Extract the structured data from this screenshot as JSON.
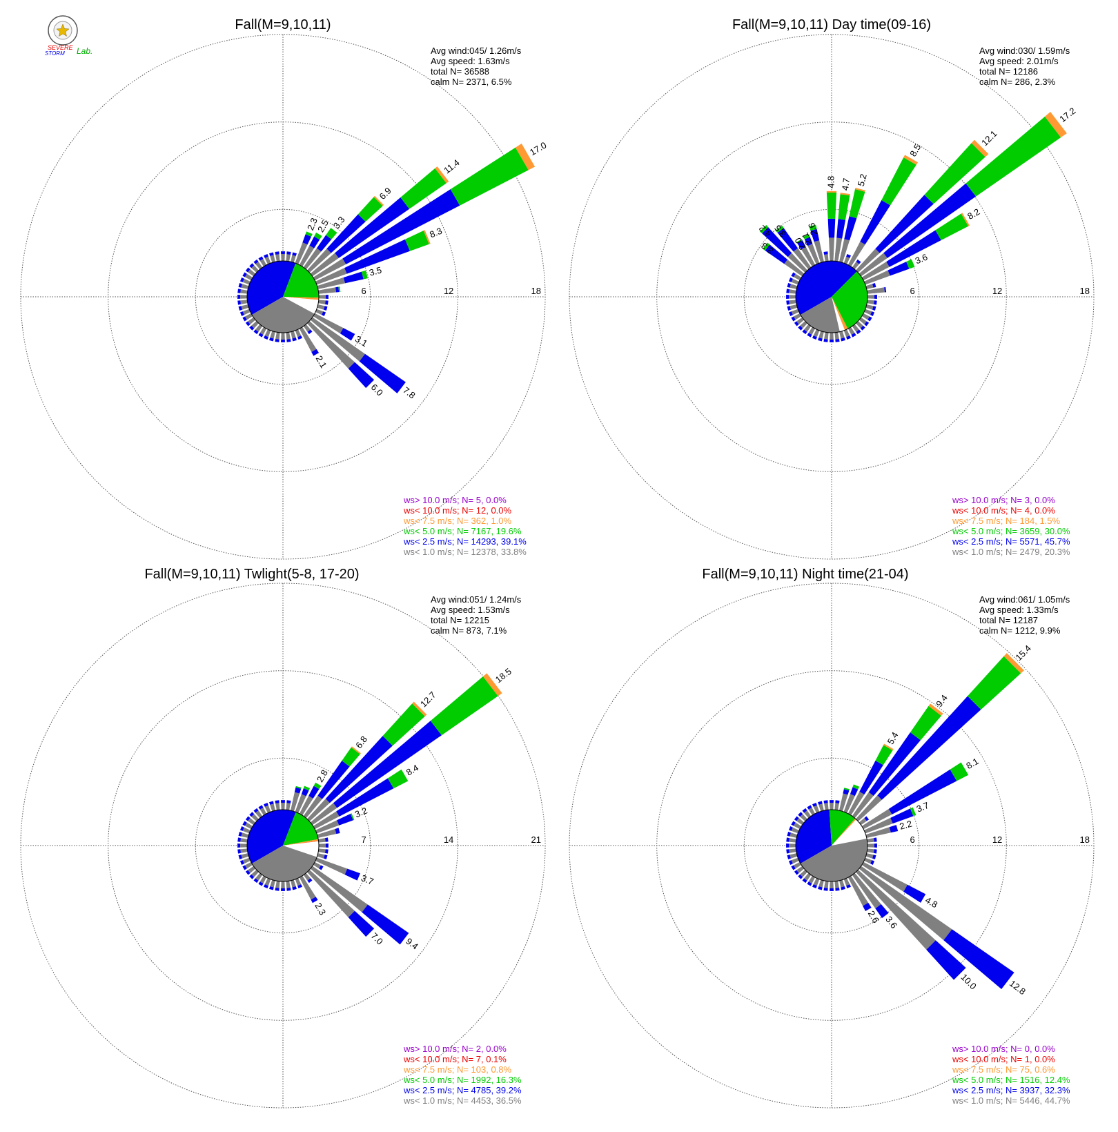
{
  "logo": {
    "line1": "SEVERE",
    "line2": "STORM",
    "line3": "Lab."
  },
  "colors": {
    "calm": "#ffffff",
    "lt1": "#808080",
    "lt2_5": "#0000ee",
    "lt5": "#00cc00",
    "lt7_5": "#ff9933",
    "lt10": "#ee0000",
    "gt10": "#9900cc"
  },
  "chart_data": [
    {
      "type": "wind-rose",
      "title": "Fall(M=9,10,11)",
      "stats": [
        "Avg wind:045/ 1.26m/s",
        "Avg speed: 1.63m/s",
        "total N=       36588",
        "calm N=   2371,   6.5%"
      ],
      "rings": [
        6,
        12,
        18
      ],
      "petals": [
        {
          "dir": 22.5,
          "total": 2.3,
          "lt1": 1.5,
          "lt2_5": 0.6,
          "lt5": 0.2
        },
        {
          "dir": 30,
          "total": 2.5,
          "lt1": 1.5,
          "lt2_5": 0.7,
          "lt5": 0.3
        },
        {
          "dir": 37.5,
          "total": 3.3,
          "lt1": 1.6,
          "lt2_5": 1.1,
          "lt5": 0.6
        },
        {
          "dir": 45,
          "total": 6.9,
          "lt1": 2.0,
          "lt2_5": 3.2,
          "lt5": 1.6,
          "lt7_5": 0.1
        },
        {
          "dir": 52.5,
          "total": 11.4,
          "lt1": 2.2,
          "lt2_5": 5.9,
          "lt5": 3.1,
          "lt7_5": 0.2
        },
        {
          "dir": 60,
          "total": 17.0,
          "lt1": 2.4,
          "lt2_5": 8.8,
          "lt5": 5.3,
          "lt7_5": 0.5
        },
        {
          "dir": 67.5,
          "total": 8.3,
          "lt1": 2.2,
          "lt2_5": 4.6,
          "lt5": 1.4,
          "lt7_5": 0.1
        },
        {
          "dir": 75,
          "total": 3.5,
          "lt1": 1.9,
          "lt2_5": 1.3,
          "lt5": 0.3
        },
        {
          "dir": 82.5,
          "total": 1.5,
          "lt1": 1.2,
          "lt2_5": 0.2,
          "lt5": 0.1
        },
        {
          "dir": 120,
          "total": 3.1,
          "lt1": 2.2,
          "lt2_5": 0.9
        },
        {
          "dir": 127.5,
          "total": 7.8,
          "lt1": 4.4,
          "lt2_5": 3.4
        },
        {
          "dir": 135,
          "total": 6.0,
          "lt1": 4.2,
          "lt2_5": 1.8
        },
        {
          "dir": 150,
          "total": 2.1,
          "lt1": 1.8,
          "lt2_5": 0.3
        }
      ],
      "labels": [
        {
          "dir": 22.5,
          "text": "2.3"
        },
        {
          "dir": 30,
          "text": "2.5"
        },
        {
          "dir": 37.5,
          "text": "3.3"
        },
        {
          "dir": 45,
          "text": "6.9"
        },
        {
          "dir": 52.5,
          "text": "11.4"
        },
        {
          "dir": 60,
          "text": "17.0"
        },
        {
          "dir": 67.5,
          "text": "8.3"
        },
        {
          "dir": 75,
          "text": "3.5"
        },
        {
          "dir": 120,
          "text": "3.1"
        },
        {
          "dir": 127.5,
          "text": "7.8"
        },
        {
          "dir": 135,
          "text": "6.0"
        },
        {
          "dir": 150,
          "text": "2.1"
        }
      ],
      "pie": {
        "lt2_5": 39.1,
        "lt5": 19.6,
        "lt7_5": 1.0,
        "lt10": 0.0,
        "gt10": 0.0,
        "calm": 6.5,
        "lt1": 33.8
      },
      "legend": [
        {
          "key": "gt10",
          "text": "ws> 10.0 m/s; N=     5,  0.0%"
        },
        {
          "key": "lt10",
          "text": "ws< 10.0 m/s; N=    12,  0.0%"
        },
        {
          "key": "lt7_5",
          "text": "ws<  7.5 m/s; N=   362,  1.0%"
        },
        {
          "key": "lt5",
          "text": "ws<  5.0 m/s; N=  7167, 19.6%"
        },
        {
          "key": "lt2_5",
          "text": "ws<  2.5 m/s; N= 14293, 39.1%"
        },
        {
          "key": "lt1",
          "text": "ws<  1.0 m/s; N= 12378, 33.8%"
        }
      ]
    },
    {
      "type": "wind-rose",
      "title": "Fall(M=9,10,11) Day time(09-16)",
      "stats": [
        "Avg wind:030/ 1.59m/s",
        "Avg speed: 2.01m/s",
        "total N=       12186",
        "calm N=    286,   2.3%"
      ],
      "rings": [
        6,
        12,
        18
      ],
      "petals": [
        {
          "dir": -52.5,
          "total": 3.3,
          "lt1": 1.5,
          "lt2_5": 1.6,
          "lt5": 0.2
        },
        {
          "dir": -45,
          "total": 4.2,
          "lt1": 1.6,
          "lt2_5": 2.4,
          "lt5": 0.2
        },
        {
          "dir": -37.5,
          "total": 3.5,
          "lt1": 1.6,
          "lt2_5": 1.7,
          "lt5": 0.2
        },
        {
          "dir": -30,
          "total": 2.0,
          "lt1": 1.4,
          "lt2_5": 0.5,
          "lt5": 0.1
        },
        {
          "dir": -22.5,
          "total": 2.1,
          "lt1": 1.4,
          "lt2_5": 0.5,
          "lt5": 0.2
        },
        {
          "dir": -15,
          "total": 2.6,
          "lt1": 1.5,
          "lt2_5": 0.8,
          "lt5": 0.3
        },
        {
          "dir": 0,
          "total": 4.8,
          "lt1": 1.6,
          "lt2_5": 1.3,
          "lt5": 1.8,
          "lt7_5": 0.1
        },
        {
          "dir": 7.5,
          "total": 4.7,
          "lt1": 1.6,
          "lt2_5": 1.3,
          "lt5": 1.7,
          "lt7_5": 0.1
        },
        {
          "dir": 15,
          "total": 5.2,
          "lt1": 1.6,
          "lt2_5": 1.6,
          "lt5": 1.9,
          "lt7_5": 0.1
        },
        {
          "dir": 30,
          "total": 8.5,
          "lt1": 1.8,
          "lt2_5": 3.2,
          "lt5": 3.3,
          "lt7_5": 0.2
        },
        {
          "dir": 45,
          "total": 12.1,
          "lt1": 2.0,
          "lt2_5": 5.0,
          "lt5": 4.8,
          "lt7_5": 0.3
        },
        {
          "dir": 52.5,
          "total": 17.2,
          "lt1": 2.2,
          "lt2_5": 7.4,
          "lt5": 7.1,
          "lt7_5": 0.5
        },
        {
          "dir": 60,
          "total": 8.2,
          "lt1": 2.0,
          "lt2_5": 4.0,
          "lt5": 2.1,
          "lt7_5": 0.1
        },
        {
          "dir": 67.5,
          "total": 3.6,
          "lt1": 1.8,
          "lt2_5": 1.4,
          "lt5": 0.4
        },
        {
          "dir": 82.5,
          "total": 1.3,
          "lt1": 1.2,
          "lt2_5": 0.1
        }
      ],
      "labels": [
        {
          "dir": -52.5,
          "text": "3.3"
        },
        {
          "dir": -45,
          "text": "4.2"
        },
        {
          "dir": -37.5,
          "text": "3.5"
        },
        {
          "dir": -30,
          "text": "2.0"
        },
        {
          "dir": -22.5,
          "text": "2.1"
        },
        {
          "dir": -15,
          "text": "2.6"
        },
        {
          "dir": 0,
          "text": "4.8"
        },
        {
          "dir": 7.5,
          "text": "4.7"
        },
        {
          "dir": 15,
          "text": "5.2"
        },
        {
          "dir": 30,
          "text": "8.5"
        },
        {
          "dir": 45,
          "text": "12.1"
        },
        {
          "dir": 52.5,
          "text": "17.2"
        },
        {
          "dir": 60,
          "text": "8.2"
        },
        {
          "dir": 67.5,
          "text": "3.6"
        }
      ],
      "pie": {
        "lt2_5": 45.7,
        "lt5": 30.0,
        "lt7_5": 1.5,
        "lt10": 0.0,
        "gt10": 0.0,
        "calm": 2.3,
        "lt1": 20.3
      },
      "legend": [
        {
          "key": "gt10",
          "text": "ws> 10.0 m/s; N=     3,  0.0%"
        },
        {
          "key": "lt10",
          "text": "ws< 10.0 m/s; N=     4,  0.0%"
        },
        {
          "key": "lt7_5",
          "text": "ws<  7.5 m/s; N=   184,  1.5%"
        },
        {
          "key": "lt5",
          "text": "ws<  5.0 m/s; N=  3659, 30.0%"
        },
        {
          "key": "lt2_5",
          "text": "ws<  2.5 m/s; N=  5571, 45.7%"
        },
        {
          "key": "lt1",
          "text": "ws<  1.0 m/s; N=  2479, 20.3%"
        }
      ]
    },
    {
      "type": "wind-rose",
      "title": "Fall(M=9,10,11) Twlight(5-8, 17-20)",
      "stats": [
        "Avg wind:051/ 1.24m/s",
        "Avg speed: 1.53m/s",
        "total N=       12215",
        "calm N=    873,   7.1%"
      ],
      "rings": [
        7,
        14,
        21
      ],
      "petals": [
        {
          "dir": 15,
          "total": 2.0,
          "lt1": 1.5,
          "lt2_5": 0.4,
          "lt5": 0.1
        },
        {
          "dir": 22.5,
          "total": 2.2,
          "lt1": 1.5,
          "lt2_5": 0.5,
          "lt5": 0.2
        },
        {
          "dir": 30,
          "total": 2.8,
          "lt1": 1.6,
          "lt2_5": 0.9,
          "lt5": 0.3
        },
        {
          "dir": 37.5,
          "total": 6.8,
          "lt1": 2.0,
          "lt2_5": 3.4,
          "lt5": 1.3,
          "lt7_5": 0.1
        },
        {
          "dir": 45,
          "total": 12.7,
          "lt1": 2.2,
          "lt2_5": 6.8,
          "lt5": 3.5,
          "lt7_5": 0.2
        },
        {
          "dir": 52.5,
          "total": 18.5,
          "lt1": 2.4,
          "lt2_5": 10.2,
          "lt5": 5.5,
          "lt7_5": 0.4
        },
        {
          "dir": 60,
          "total": 8.4,
          "lt1": 2.2,
          "lt2_5": 4.9,
          "lt5": 1.3
        },
        {
          "dir": 67.5,
          "total": 3.2,
          "lt1": 1.9,
          "lt2_5": 1.2,
          "lt5": 0.1
        },
        {
          "dir": 75,
          "total": 1.8,
          "lt1": 1.5,
          "lt2_5": 0.3
        },
        {
          "dir": 112.5,
          "total": 3.7,
          "lt1": 2.6,
          "lt2_5": 1.1
        },
        {
          "dir": 127.5,
          "total": 9.4,
          "lt1": 5.4,
          "lt2_5": 4.0
        },
        {
          "dir": 135,
          "total": 7.0,
          "lt1": 4.9,
          "lt2_5": 2.1
        },
        {
          "dir": 150,
          "total": 2.3,
          "lt1": 2.0,
          "lt2_5": 0.3
        }
      ],
      "labels": [
        {
          "dir": 30,
          "text": "2.8"
        },
        {
          "dir": 37.5,
          "text": "6.8"
        },
        {
          "dir": 45,
          "text": "12.7"
        },
        {
          "dir": 52.5,
          "text": "18.5"
        },
        {
          "dir": 60,
          "text": "8.4"
        },
        {
          "dir": 67.5,
          "text": "3.2"
        },
        {
          "dir": 112.5,
          "text": "3.7"
        },
        {
          "dir": 127.5,
          "text": "9.4"
        },
        {
          "dir": 135,
          "text": "7.0"
        },
        {
          "dir": 150,
          "text": "2.3"
        }
      ],
      "pie": {
        "lt2_5": 39.2,
        "lt5": 16.3,
        "lt7_5": 0.8,
        "lt10": 0.1,
        "gt10": 0.0,
        "calm": 7.1,
        "lt1": 36.5
      },
      "legend": [
        {
          "key": "gt10",
          "text": "ws> 10.0 m/s; N=     2,  0.0%"
        },
        {
          "key": "lt10",
          "text": "ws< 10.0 m/s; N=     7,  0.1%"
        },
        {
          "key": "lt7_5",
          "text": "ws<  7.5 m/s; N=   103,  0.8%"
        },
        {
          "key": "lt5",
          "text": "ws<  5.0 m/s; N=  1992, 16.3%"
        },
        {
          "key": "lt2_5",
          "text": "ws<  2.5 m/s; N=  4785, 39.2%"
        },
        {
          "key": "lt1",
          "text": "ws<  1.0 m/s; N=  4453, 36.5%"
        }
      ]
    },
    {
      "type": "wind-rose",
      "title": "Fall(M=9,10,11) Night time(21-04)",
      "stats": [
        "Avg wind:061/ 1.05m/s",
        "Avg speed: 1.33m/s",
        "total N=       12187",
        "calm N=   1212,   9.9%"
      ],
      "rings": [
        6,
        12,
        18
      ],
      "petals": [
        {
          "dir": 15,
          "total": 1.6,
          "lt1": 1.2,
          "lt2_5": 0.3,
          "lt5": 0.1
        },
        {
          "dir": 22.5,
          "total": 2.0,
          "lt1": 1.3,
          "lt2_5": 0.5,
          "lt5": 0.2
        },
        {
          "dir": 30,
          "total": 5.4,
          "lt1": 1.7,
          "lt2_5": 2.4,
          "lt5": 1.2,
          "lt7_5": 0.1
        },
        {
          "dir": 37.5,
          "total": 9.4,
          "lt1": 2.0,
          "lt2_5": 5.0,
          "lt5": 2.2,
          "lt7_5": 0.2
        },
        {
          "dir": 45,
          "total": 15.4,
          "lt1": 2.2,
          "lt2_5": 9.2,
          "lt5": 3.7,
          "lt7_5": 0.3
        },
        {
          "dir": 60,
          "total": 8.1,
          "lt1": 2.2,
          "lt2_5": 5.0,
          "lt5": 0.9
        },
        {
          "dir": 67.5,
          "total": 3.7,
          "lt1": 2.0,
          "lt2_5": 1.5,
          "lt5": 0.2
        },
        {
          "dir": 75,
          "total": 2.2,
          "lt1": 1.7,
          "lt2_5": 0.5
        },
        {
          "dir": 120,
          "total": 4.8,
          "lt1": 3.4,
          "lt2_5": 1.4
        },
        {
          "dir": 127.5,
          "total": 12.8,
          "lt1": 7.6,
          "lt2_5": 5.2
        },
        {
          "dir": 135,
          "total": 10.0,
          "lt1": 7.2,
          "lt2_5": 2.8
        },
        {
          "dir": 142.5,
          "total": 3.6,
          "lt1": 2.8,
          "lt2_5": 0.8
        },
        {
          "dir": 150,
          "total": 2.6,
          "lt1": 2.2,
          "lt2_5": 0.4
        }
      ],
      "labels": [
        {
          "dir": 30,
          "text": "5.4"
        },
        {
          "dir": 37.5,
          "text": "9.4"
        },
        {
          "dir": 45,
          "text": "15.4"
        },
        {
          "dir": 60,
          "text": "8.1"
        },
        {
          "dir": 67.5,
          "text": "3.7"
        },
        {
          "dir": 75,
          "text": "2.2"
        },
        {
          "dir": 120,
          "text": "4.8"
        },
        {
          "dir": 127.5,
          "text": "12.8"
        },
        {
          "dir": 135,
          "text": "10.0"
        },
        {
          "dir": 142.5,
          "text": "3.6"
        },
        {
          "dir": 150,
          "text": "2.6"
        }
      ],
      "pie": {
        "lt2_5": 32.3,
        "lt5": 12.4,
        "lt7_5": 0.6,
        "lt10": 0.0,
        "gt10": 0.0,
        "calm": 9.9,
        "lt1": 44.7
      },
      "legend": [
        {
          "key": "gt10",
          "text": "ws> 10.0 m/s; N=     0,  0.0%"
        },
        {
          "key": "lt10",
          "text": "ws< 10.0 m/s; N=     1,  0.0%"
        },
        {
          "key": "lt7_5",
          "text": "ws<  7.5 m/s; N=    75,  0.6%"
        },
        {
          "key": "lt5",
          "text": "ws<  5.0 m/s; N=  1516, 12.4%"
        },
        {
          "key": "lt2_5",
          "text": "ws<  2.5 m/s; N=  3937, 32.3%"
        },
        {
          "key": "lt1",
          "text": "ws<  1.0 m/s; N=  5446, 44.7%"
        }
      ]
    }
  ]
}
